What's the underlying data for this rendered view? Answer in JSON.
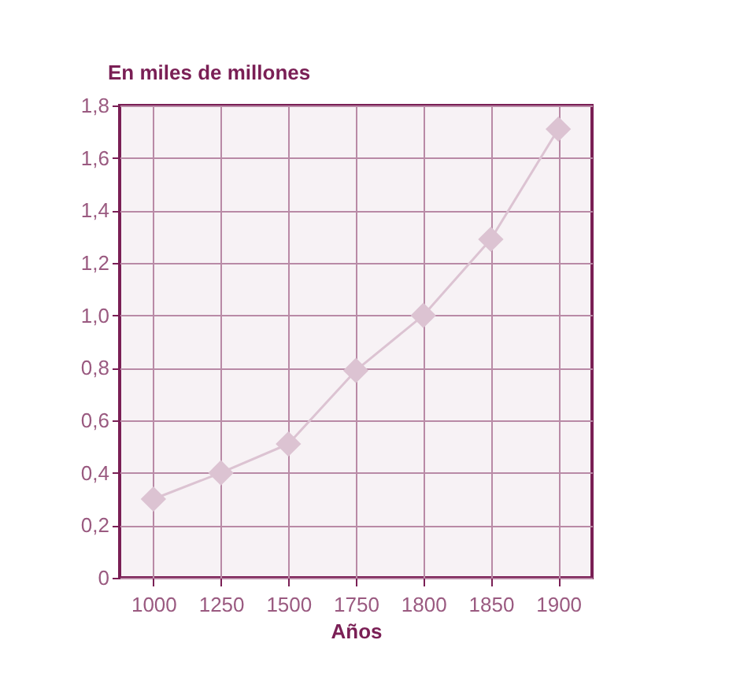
{
  "chart_data": {
    "type": "line",
    "ylabel": "En miles de millones",
    "xlabel": "Años",
    "categories": [
      "1000",
      "1250",
      "1500",
      "1750",
      "1800",
      "1850",
      "1900"
    ],
    "series": [
      {
        "color": "#dcc3d2",
        "values": [
          0.3,
          0.4,
          0.51,
          0.79,
          1.0,
          1.29,
          1.71
        ]
      }
    ],
    "ylim": [
      0,
      1.8
    ],
    "yticks": [
      0,
      {
        "value": 0.2,
        "label": "0,2"
      },
      {
        "value": 0.4,
        "label": "0,4"
      },
      {
        "value": 0.6,
        "label": "0,6"
      },
      {
        "value": 0.8,
        "label": "0,8"
      },
      {
        "value": 1.0,
        "label": "1,0"
      },
      {
        "value": 1.2,
        "label": "1,2"
      },
      {
        "value": 1.4,
        "label": "1,4"
      },
      {
        "value": 1.6,
        "label": "1,6"
      },
      {
        "value": 1.8,
        "label": "1,8"
      }
    ],
    "grid": true,
    "marker": "diamond",
    "line_style": "solid"
  }
}
